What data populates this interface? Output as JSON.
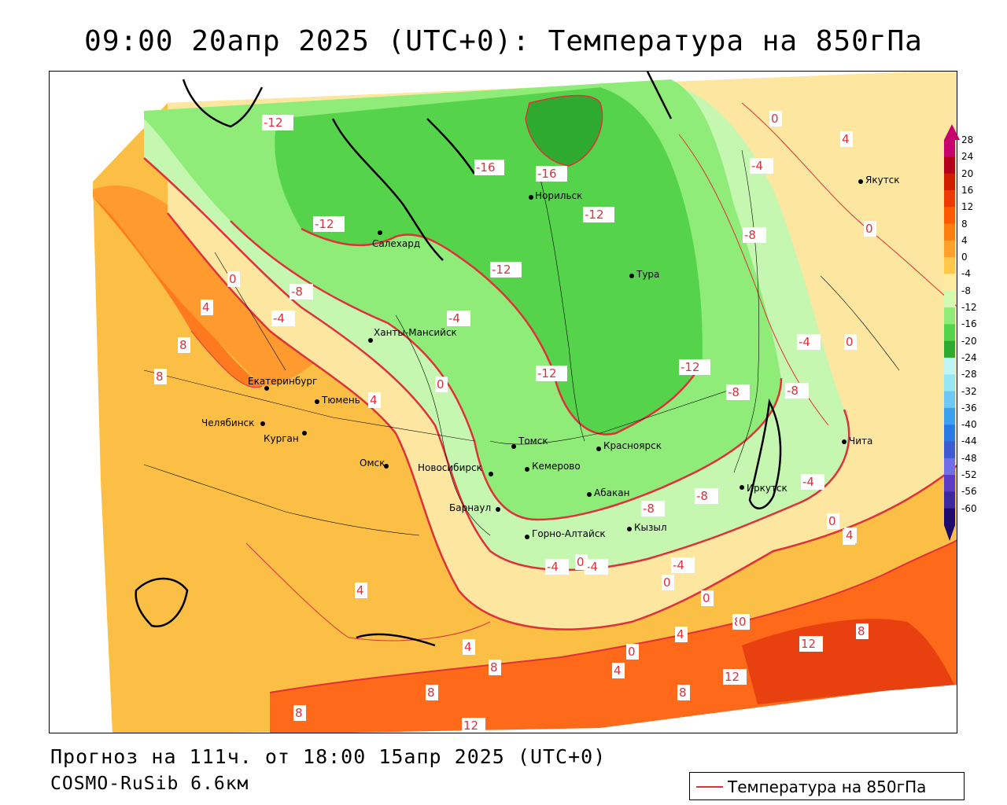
{
  "title": "09:00 20апр 2025 (UTC+0): Температура на 850гПа",
  "forecast_text": "Прогноз на 111ч. от 18:00 15апр 2025 (UTC+0)",
  "model_text": "COSMO-RuSib 6.6км",
  "legend": {
    "label": "Температура на 850гПа",
    "color": "#e0303a"
  },
  "colors": {
    "warm_8_12": "#ff6a1a",
    "warm_4_8": "#ff9a2e",
    "warm_0_4": "#fcbf45",
    "cool_m4_0": "#fde7a0",
    "cool_m8_m4": "#c5f7b0",
    "cool_m12_m8": "#8fec79",
    "cool_m16_m12": "#55d44b",
    "cold_m20_m16": "#2eaa2e",
    "isoline": "#e0303a"
  },
  "colorbar": {
    "labels": [
      "28",
      "24",
      "20",
      "16",
      "12",
      "8",
      "4",
      "0",
      "-4",
      "-8",
      "-12",
      "-16",
      "-20",
      "-24",
      "-28",
      "-32",
      "-36",
      "-40",
      "-44",
      "-48",
      "-52",
      "-56",
      "-60"
    ],
    "colors": [
      "#c8006e",
      "#b4001a",
      "#d21e00",
      "#ee3a00",
      "#ff5a00",
      "#ff7e10",
      "#ffa02a",
      "#ffc84a",
      "#ffeaa0",
      "#d2fab0",
      "#8fec79",
      "#55d44b",
      "#2eaa2e",
      "#bff5f5",
      "#96e6f5",
      "#6ec8f5",
      "#3ca0f0",
      "#2878e6",
      "#3c5ad2",
      "#6e6ee6",
      "#5a3cc8",
      "#3c28a0",
      "#1e0a6e"
    ]
  },
  "cities": [
    {
      "name": "Якутск"
    },
    {
      "name": "Норильск"
    },
    {
      "name": "Салехард"
    },
    {
      "name": "Тура"
    },
    {
      "name": "Ханты-Мансийск"
    },
    {
      "name": "Екатеринбург"
    },
    {
      "name": "Тюмень"
    },
    {
      "name": "Челябинск"
    },
    {
      "name": "Курган"
    },
    {
      "name": "Омск"
    },
    {
      "name": "Новосибирск"
    },
    {
      "name": "Томск"
    },
    {
      "name": "Красноярск"
    },
    {
      "name": "Кемерово"
    },
    {
      "name": "Абакан"
    },
    {
      "name": "Иркутск"
    },
    {
      "name": "Барнаул"
    },
    {
      "name": "Горно-Алтайск"
    },
    {
      "name": "Кызыл"
    },
    {
      "name": "Чита"
    }
  ],
  "isoline_labels": [
    "-12",
    "-16",
    "-16",
    "-12",
    "-12",
    "-8",
    "-12",
    "-4",
    "-8",
    "-4",
    "-12",
    "0",
    "-4",
    "-12",
    "-8",
    "-4",
    "0",
    "0",
    "4",
    "4",
    "8",
    "8",
    "4",
    "0",
    "-4",
    "0",
    "4",
    "-4",
    "-4",
    "-4",
    "0",
    "0",
    "4",
    "8",
    "12",
    "8",
    "4",
    "12",
    "4",
    "8",
    "8",
    "8",
    "12",
    "8",
    "0",
    "-8",
    "-8",
    "-8",
    "0",
    "0",
    "4",
    "4",
    "0"
  ]
}
